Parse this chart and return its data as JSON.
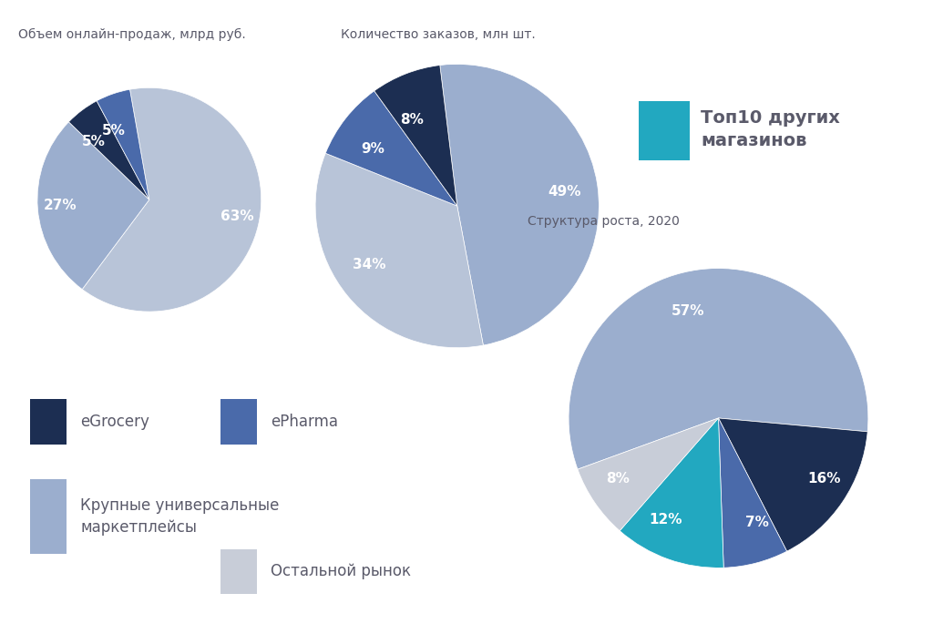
{
  "pie1_title": "Объем онлайн-продаж, млрд руб.",
  "pie1_values": [
    63,
    27,
    5,
    5
  ],
  "pie1_labels": [
    "63%",
    "27%",
    "5%",
    "5%"
  ],
  "pie1_colors": [
    "#b8c4d8",
    "#9baece",
    "#1c2e52",
    "#4a6aaa"
  ],
  "pie1_startangle": 100,
  "pie2_title": "Количество заказов, млн шт.",
  "pie2_values": [
    49,
    34,
    9,
    8
  ],
  "pie2_labels": [
    "49%",
    "34%",
    "9%",
    "8%"
  ],
  "pie2_colors": [
    "#9baece",
    "#b8c4d8",
    "#4a6aaa",
    "#1c2e52"
  ],
  "pie2_startangle": 97,
  "pie3_title": "Структура роста, 2020",
  "pie3_values": [
    57,
    16,
    7,
    12,
    8
  ],
  "pie3_labels": [
    "57%",
    "16%",
    "7%",
    "12%",
    "8%"
  ],
  "pie3_colors": [
    "#9baece",
    "#1c2e52",
    "#4a6aaa",
    "#22a8c0",
    "#c8cdd8"
  ],
  "pie3_startangle": 200,
  "legend_items": [
    {
      "label": "eGrocery",
      "color": "#1c2e52"
    },
    {
      "label": "ePharma",
      "color": "#4a6aaa"
    },
    {
      "label": "Крупные универсальные\nмаркетплейсы",
      "color": "#9baece"
    },
    {
      "label": "Остальной рынок",
      "color": "#c8cdd8"
    },
    {
      "label": "Топ10 других\nмагазинов",
      "color": "#22a8c0"
    }
  ],
  "bg_color": "#ffffff",
  "text_color": "#5a5a6a",
  "label_color": "#ffffff",
  "title_fontsize": 10,
  "label_fontsize": 11,
  "legend_fontsize": 12
}
